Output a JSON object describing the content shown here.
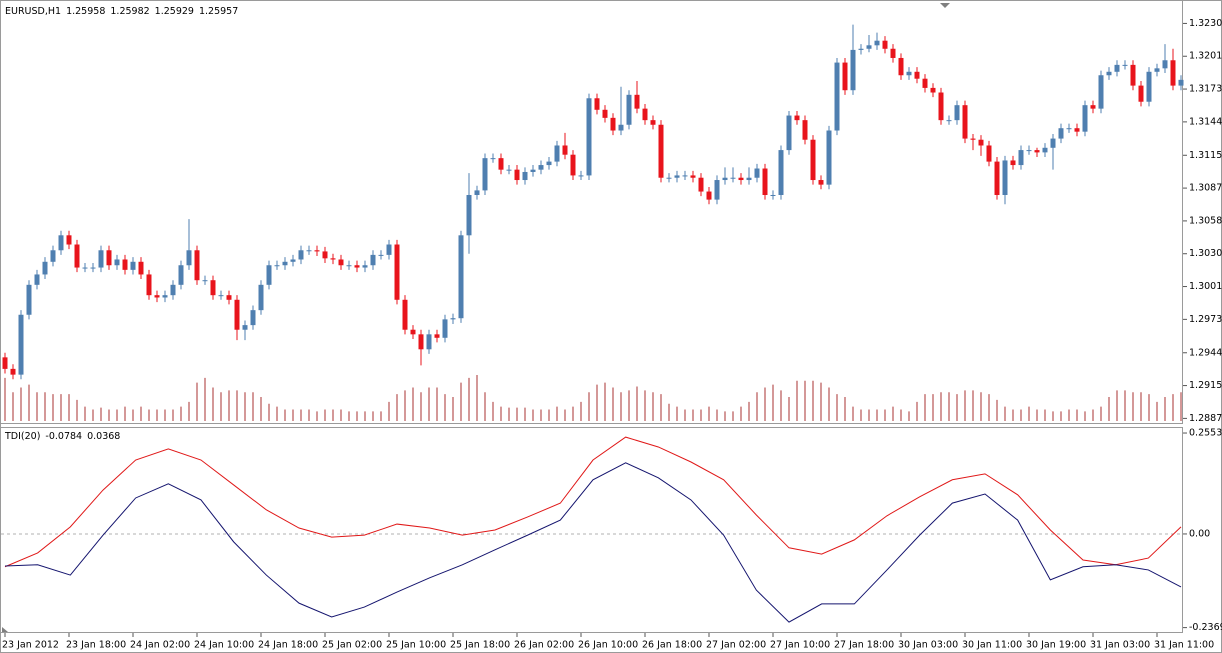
{
  "chart_data": {
    "type": "candlestick",
    "symbol": "EURUSD,H1",
    "header_values": [
      1.25958,
      1.25982,
      1.25929,
      1.25957
    ],
    "up_color": "#4f7fb0",
    "down_color": "#e8141c",
    "volume_color": "#a83232",
    "categories": [
      "23 Jan 2012",
      null,
      null,
      null,
      null,
      null,
      null,
      null,
      "23 Jan 18:00",
      null,
      null,
      null,
      null,
      null,
      null,
      null,
      "24 Jan 02:00",
      null,
      null,
      null,
      null,
      null,
      null,
      null,
      "24 Jan 10:00",
      null,
      null,
      null,
      null,
      null,
      null,
      null,
      "24 Jan 18:00",
      null,
      null,
      null,
      null,
      null,
      null,
      null,
      "25 Jan 02:00",
      null,
      null,
      null,
      null,
      null,
      null,
      null,
      "25 Jan 10:00",
      null,
      null,
      null,
      null,
      null,
      null,
      null,
      "25 Jan 18:00",
      null,
      null,
      null,
      null,
      null,
      null,
      null,
      "26 Jan 02:00",
      null,
      null,
      null,
      null,
      null,
      null,
      null,
      "26 Jan 10:00",
      null,
      null,
      null,
      null,
      null,
      null,
      null,
      "26 Jan 18:00",
      null,
      null,
      null,
      null,
      null,
      null,
      null,
      "27 Jan 02:00",
      null,
      null,
      null,
      null,
      null,
      null,
      null,
      "27 Jan 10:00",
      null,
      null,
      null,
      null,
      null,
      null,
      null,
      "27 Jan 18:00",
      null,
      null,
      null,
      null,
      null,
      null,
      null,
      "30 Jan 03:00",
      null,
      null,
      null,
      null,
      null,
      null,
      null,
      "30 Jan 11:00",
      null,
      null,
      null,
      null,
      null,
      null,
      null,
      "30 Jan 19:00",
      null,
      null,
      null,
      null,
      null,
      null,
      null,
      "31 Jan 03:00",
      null,
      null,
      null,
      null,
      null,
      null,
      null,
      "31 Jan 11:00",
      null,
      null,
      null
    ],
    "open": [
      1.294,
      1.293,
      1.2925,
      1.2977,
      1.3003,
      1.3012,
      1.3023,
      1.3033,
      1.3046,
      1.3038,
      1.3018,
      1.3018,
      1.3018,
      1.3033,
      1.302,
      1.3025,
      1.3016,
      1.3023,
      1.3012,
      1.2994,
      1.2992,
      1.2994,
      1.3003,
      1.302,
      1.3033,
      1.3007,
      1.3007,
      1.2994,
      1.2994,
      1.299,
      1.2964,
      1.2968,
      1.2981,
      1.3003,
      1.302,
      1.302,
      1.3023,
      1.3025,
      1.3033,
      1.3033,
      1.3032,
      1.3026,
      1.3025,
      1.302,
      1.302,
      1.3018,
      1.302,
      1.3029,
      1.3029,
      1.3038,
      1.299,
      1.2964,
      1.296,
      1.2947,
      1.296,
      1.2957,
      1.2973,
      1.2974,
      1.3046,
      1.3081,
      1.3085,
      1.3113,
      1.3113,
      1.3103,
      1.3103,
      1.3094,
      1.3101,
      1.3103,
      1.3107,
      1.311,
      1.3124,
      1.3116,
      1.3098,
      1.3098,
      1.3165,
      1.3155,
      1.3148,
      1.3137,
      1.3142,
      1.3168,
      1.3156,
      1.3146,
      1.3142,
      1.3096,
      1.3096,
      1.3098,
      1.3098,
      1.3096,
      1.3084,
      1.3077,
      1.3094,
      1.3096,
      1.3096,
      1.3094,
      1.3096,
      1.3104,
      1.3081,
      1.3081,
      1.312,
      1.315,
      1.3146,
      1.3129,
      1.3094,
      1.309,
      1.3137,
      1.3196,
      1.3172,
      1.3207,
      1.3208,
      1.3211,
      1.3215,
      1.3208,
      1.32,
      1.3185,
      1.3188,
      1.3182,
      1.3174,
      1.317,
      1.3146,
      1.3146,
      1.3159,
      1.313,
      1.3129,
      1.3124,
      1.311,
      1.3081,
      1.3111,
      1.3107,
      1.312,
      1.312,
      1.3118,
      1.3122,
      1.313,
      1.3139,
      1.3139,
      1.3136,
      1.3159,
      1.3156,
      1.3185,
      1.3188,
      1.3194,
      1.3194,
      1.3176,
      1.3162,
      1.3188,
      1.3191,
      1.3198,
      1.3176
    ],
    "high": [
      1.2944,
      1.2934,
      1.2981,
      1.3007,
      1.3016,
      1.3027,
      1.3037,
      1.305,
      1.305,
      1.3042,
      1.3022,
      1.3022,
      1.3037,
      1.3037,
      1.3029,
      1.3029,
      1.3027,
      1.3027,
      1.3016,
      1.2998,
      1.2998,
      1.3007,
      1.3024,
      1.306,
      1.3037,
      1.3011,
      1.3011,
      1.2998,
      1.2998,
      1.2994,
      1.2972,
      1.2985,
      1.3007,
      1.3024,
      1.3024,
      1.3027,
      1.3029,
      1.3037,
      1.3037,
      1.3037,
      1.3036,
      1.303,
      1.3029,
      1.3024,
      1.3024,
      1.3024,
      1.3033,
      1.3033,
      1.3042,
      1.3042,
      1.2994,
      1.2968,
      1.2964,
      1.2964,
      1.2964,
      1.2977,
      1.2978,
      1.305,
      1.31,
      1.3089,
      1.3117,
      1.3117,
      1.3117,
      1.3107,
      1.3107,
      1.3105,
      1.3107,
      1.3111,
      1.3114,
      1.3128,
      1.3135,
      1.312,
      1.3102,
      1.3169,
      1.3169,
      1.3159,
      1.3152,
      1.3175,
      1.3172,
      1.318,
      1.316,
      1.315,
      1.3146,
      1.31,
      1.3102,
      1.3102,
      1.3102,
      1.31,
      1.3088,
      1.3098,
      1.3105,
      1.3105,
      1.31,
      1.3105,
      1.3108,
      1.3108,
      1.3085,
      1.3124,
      1.3154,
      1.3154,
      1.315,
      1.3133,
      1.3098,
      1.3141,
      1.32,
      1.32,
      1.3229,
      1.3212,
      1.322,
      1.3222,
      1.3219,
      1.3212,
      1.3204,
      1.3192,
      1.3192,
      1.3186,
      1.3178,
      1.3174,
      1.315,
      1.3163,
      1.3163,
      1.3134,
      1.3133,
      1.3128,
      1.3114,
      1.3115,
      1.3115,
      1.3124,
      1.3124,
      1.3122,
      1.3126,
      1.3134,
      1.3143,
      1.3143,
      1.3143,
      1.3163,
      1.3163,
      1.3189,
      1.3192,
      1.3198,
      1.3198,
      1.3198,
      1.318,
      1.3192,
      1.3195,
      1.3212,
      1.3208,
      1.3185
    ],
    "low": [
      1.2926,
      1.2921,
      1.2921,
      1.2973,
      1.2999,
      1.3008,
      1.3019,
      1.3029,
      1.3034,
      1.3014,
      1.3014,
      1.3014,
      1.3014,
      1.3016,
      1.3016,
      1.3012,
      1.3012,
      1.3008,
      1.299,
      1.2988,
      1.2988,
      1.299,
      1.2999,
      1.3016,
      1.3003,
      1.3003,
      1.299,
      1.299,
      1.2986,
      1.2955,
      1.2955,
      1.2964,
      1.2977,
      1.2999,
      1.3016,
      1.3016,
      1.3019,
      1.3021,
      1.3029,
      1.3028,
      1.3022,
      1.3021,
      1.3016,
      1.3016,
      1.3014,
      1.3014,
      1.3016,
      1.3025,
      1.3025,
      1.2986,
      1.296,
      1.2956,
      1.2933,
      1.2943,
      1.2953,
      1.2953,
      1.2969,
      1.297,
      1.303,
      1.3077,
      1.3081,
      1.3109,
      1.3099,
      1.3099,
      1.309,
      1.309,
      1.3097,
      1.3099,
      1.3103,
      1.3106,
      1.3112,
      1.3094,
      1.3094,
      1.3094,
      1.3151,
      1.3144,
      1.3133,
      1.3133,
      1.3138,
      1.3152,
      1.3142,
      1.3138,
      1.3092,
      1.3092,
      1.3092,
      1.3094,
      1.3092,
      1.308,
      1.3073,
      1.3073,
      1.309,
      1.3092,
      1.309,
      1.309,
      1.3092,
      1.3077,
      1.3077,
      1.3077,
      1.3116,
      1.3142,
      1.3125,
      1.309,
      1.3086,
      1.3086,
      1.3133,
      1.3168,
      1.3168,
      1.3203,
      1.3205,
      1.3207,
      1.3204,
      1.3196,
      1.3181,
      1.3181,
      1.3178,
      1.317,
      1.3166,
      1.3142,
      1.3142,
      1.3142,
      1.3126,
      1.312,
      1.3115,
      1.3106,
      1.3077,
      1.3073,
      1.3103,
      1.3103,
      1.3116,
      1.3114,
      1.3114,
      1.3103,
      1.3126,
      1.3135,
      1.3132,
      1.3132,
      1.3152,
      1.3152,
      1.3181,
      1.3184,
      1.319,
      1.3172,
      1.3158,
      1.3158,
      1.3184,
      1.3187,
      1.3172,
      1.3172
    ],
    "close": [
      1.293,
      1.2925,
      1.2977,
      1.3003,
      1.3012,
      1.3023,
      1.3033,
      1.3046,
      1.3038,
      1.3018,
      1.3018,
      1.3018,
      1.3033,
      1.302,
      1.3025,
      1.3016,
      1.3023,
      1.3012,
      1.2994,
      1.2992,
      1.2994,
      1.3003,
      1.302,
      1.3033,
      1.3007,
      1.3007,
      1.2994,
      1.2994,
      1.299,
      1.2964,
      1.2968,
      1.2981,
      1.3003,
      1.302,
      1.302,
      1.3023,
      1.3025,
      1.3033,
      1.3033,
      1.3032,
      1.3026,
      1.3025,
      1.302,
      1.302,
      1.3018,
      1.302,
      1.3029,
      1.3029,
      1.3038,
      1.299,
      1.2964,
      1.296,
      1.2947,
      1.296,
      1.2957,
      1.2973,
      1.2974,
      1.3046,
      1.3081,
      1.3085,
      1.3113,
      1.3113,
      1.3103,
      1.3103,
      1.3094,
      1.3101,
      1.3103,
      1.3107,
      1.311,
      1.3124,
      1.3116,
      1.3098,
      1.3098,
      1.3165,
      1.3155,
      1.3148,
      1.3137,
      1.3142,
      1.3168,
      1.3156,
      1.3146,
      1.3142,
      1.3096,
      1.3096,
      1.3098,
      1.3098,
      1.3096,
      1.3084,
      1.3077,
      1.3094,
      1.3096,
      1.3096,
      1.3094,
      1.3096,
      1.3104,
      1.3081,
      1.3081,
      1.312,
      1.315,
      1.3146,
      1.3129,
      1.3094,
      1.309,
      1.3137,
      1.3196,
      1.3172,
      1.3207,
      1.3208,
      1.3211,
      1.3215,
      1.3208,
      1.32,
      1.3185,
      1.3188,
      1.3182,
      1.3174,
      1.317,
      1.3146,
      1.3146,
      1.3159,
      1.313,
      1.3129,
      1.3124,
      1.311,
      1.3081,
      1.3111,
      1.3107,
      1.312,
      1.312,
      1.3118,
      1.3122,
      1.313,
      1.3139,
      1.3139,
      1.3136,
      1.3159,
      1.3156,
      1.3185,
      1.3188,
      1.3194,
      1.3194,
      1.3176,
      1.3162,
      1.3188,
      1.3191,
      1.3198,
      1.3176,
      1.3181
    ],
    "volume": [
      45,
      30,
      35,
      38,
      30,
      30,
      28,
      28,
      28,
      22,
      15,
      12,
      14,
      12,
      12,
      15,
      12,
      15,
      12,
      12,
      12,
      12,
      15,
      20,
      40,
      45,
      35,
      30,
      32,
      32,
      30,
      30,
      25,
      18,
      15,
      12,
      12,
      12,
      12,
      10,
      12,
      12,
      12,
      10,
      10,
      10,
      10,
      10,
      20,
      28,
      32,
      35,
      30,
      35,
      35,
      28,
      25,
      40,
      45,
      48,
      30,
      20,
      15,
      14,
      14,
      14,
      12,
      12,
      12,
      15,
      12,
      15,
      20,
      30,
      38,
      40,
      35,
      30,
      32,
      36,
      32,
      30,
      28,
      18,
      15,
      12,
      12,
      12,
      15,
      12,
      10,
      10,
      15,
      20,
      30,
      35,
      38,
      32,
      25,
      42,
      42,
      42,
      40,
      35,
      28,
      25,
      15,
      12,
      12,
      12,
      12,
      15,
      12,
      10,
      20,
      28,
      28,
      30,
      30,
      28,
      32,
      32,
      30,
      28,
      22,
      15,
      12,
      12,
      15,
      12,
      12,
      10,
      10,
      12,
      12,
      10,
      12,
      15,
      25,
      32,
      32,
      30,
      30,
      28,
      20,
      25,
      28,
      30
    ],
    "ylim": [
      1.2883,
      1.3246
    ],
    "yticks": [
      {
        "value": 1.323,
        "label": "1.32300"
      },
      {
        "value": 1.32015,
        "label": "1.32015"
      },
      {
        "value": 1.3173,
        "label": "1.31730"
      },
      {
        "value": 1.31445,
        "label": "1.31445"
      },
      {
        "value": 1.31155,
        "label": "1.31155"
      },
      {
        "value": 1.3087,
        "label": "1.30870"
      },
      {
        "value": 1.30585,
        "label": "1.30585"
      },
      {
        "value": 1.303,
        "label": "1.30300"
      },
      {
        "value": 1.30015,
        "label": "1.30015"
      },
      {
        "value": 1.2973,
        "label": "1.29730"
      },
      {
        "value": 1.2944,
        "label": "1.29440"
      },
      {
        "value": 1.29155,
        "label": "1.29155"
      },
      {
        "value": 1.2887,
        "label": "1.28870"
      }
    ],
    "indicator": {
      "type": "line",
      "name": "TDI(20)",
      "header_values": [
        -0.0784,
        0.0368
      ],
      "ylim": [
        -0.248,
        0.268
      ],
      "yticks": [
        0.2553,
        {
          "value": 0,
          "label": "0.00"
        },
        -0.2369
      ],
      "level_lines": [
        0
      ],
      "series": [
        {
          "color": "#e01818",
          "values": [
            -0.083,
            -0.048,
            0.018,
            0.111,
            0.187,
            0.215,
            0.187,
            0.124,
            0.061,
            0.015,
            -0.008,
            -0.003,
            0.025,
            0.015,
            -0.003,
            0.01,
            0.043,
            0.078,
            0.187,
            0.245,
            0.22,
            0.182,
            0.137,
            0.048,
            -0.035,
            -0.051,
            -0.015,
            0.046,
            0.094,
            0.137,
            0.152,
            0.099,
            0.01,
            -0.066,
            -0.078,
            -0.061,
            0.018
          ]
        },
        {
          "color": "#14146e",
          "values": [
            -0.081,
            -0.078,
            -0.104,
            -0.003,
            0.091,
            0.127,
            0.086,
            -0.02,
            -0.104,
            -0.175,
            -0.21,
            -0.185,
            -0.147,
            -0.111,
            -0.078,
            -0.04,
            -0.003,
            0.035,
            0.137,
            0.18,
            0.142,
            0.086,
            -0.003,
            -0.142,
            -0.223,
            -0.177,
            -0.177,
            -0.091,
            -0.003,
            0.078,
            0.101,
            0.035,
            -0.116,
            -0.083,
            -0.078,
            -0.091,
            -0.134
          ]
        }
      ]
    }
  }
}
